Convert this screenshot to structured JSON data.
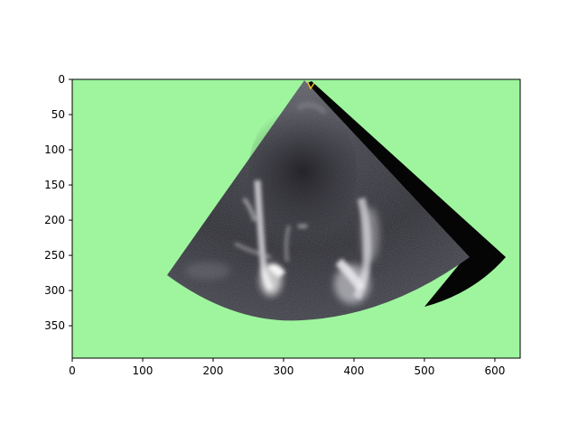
{
  "figure": {
    "background_color": "#9ef59e",
    "x_axis": {
      "ticks": [
        {
          "value": 0,
          "label": "0"
        },
        {
          "value": 100,
          "label": "100"
        },
        {
          "value": 200,
          "label": "200"
        },
        {
          "value": 300,
          "label": "300"
        },
        {
          "value": 400,
          "label": "400"
        },
        {
          "value": 500,
          "label": "500"
        },
        {
          "value": 600,
          "label": "600"
        }
      ],
      "range": [
        0,
        636
      ]
    },
    "y_axis": {
      "ticks": [
        {
          "value": 0,
          "label": "0"
        },
        {
          "value": 50,
          "label": "50"
        },
        {
          "value": 100,
          "label": "100"
        },
        {
          "value": 150,
          "label": "150"
        },
        {
          "value": 200,
          "label": "200"
        },
        {
          "value": 250,
          "label": "250"
        },
        {
          "value": 300,
          "label": "300"
        },
        {
          "value": 350,
          "label": "350"
        }
      ],
      "range": [
        0,
        396
      ],
      "inverted": true
    },
    "image": {
      "description_icon": "echocardiogram-sector-image",
      "marker_color": "#f0c020"
    }
  }
}
